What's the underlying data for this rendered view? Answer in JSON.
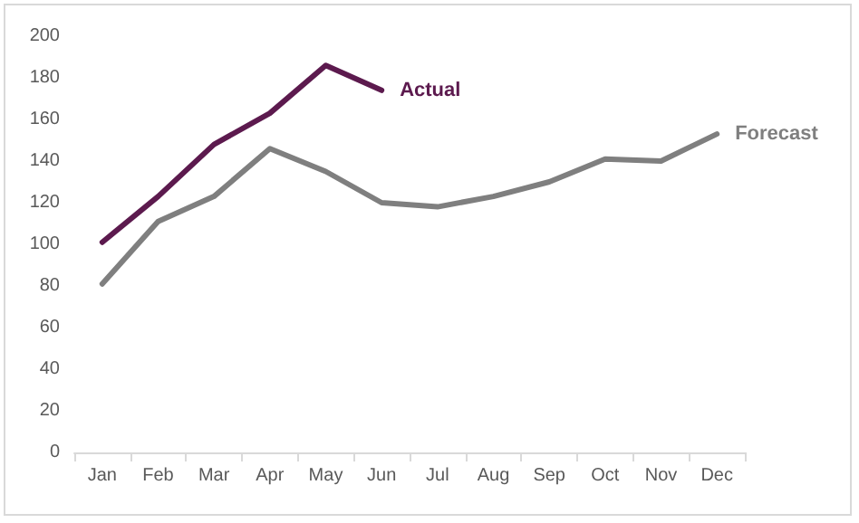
{
  "chart_data": {
    "type": "line",
    "categories": [
      "Jan",
      "Feb",
      "Mar",
      "Apr",
      "May",
      "Jun",
      "Jul",
      "Aug",
      "Sep",
      "Oct",
      "Nov",
      "Dec"
    ],
    "series": [
      {
        "name": "Actual",
        "color": "#5c1a4e",
        "values": [
          101,
          123,
          148,
          163,
          186,
          174,
          null,
          null,
          null,
          null,
          null,
          null
        ]
      },
      {
        "name": "Forecast",
        "color": "#7f7f7f",
        "values": [
          81,
          111,
          123,
          146,
          135,
          120,
          118,
          123,
          130,
          141,
          140,
          153
        ]
      }
    ],
    "ylim": [
      0,
      200
    ],
    "yticks": [
      0,
      20,
      40,
      60,
      80,
      100,
      120,
      140,
      160,
      180,
      200
    ],
    "grid": false,
    "legend": false,
    "marker": "none",
    "line_style": "solid"
  }
}
